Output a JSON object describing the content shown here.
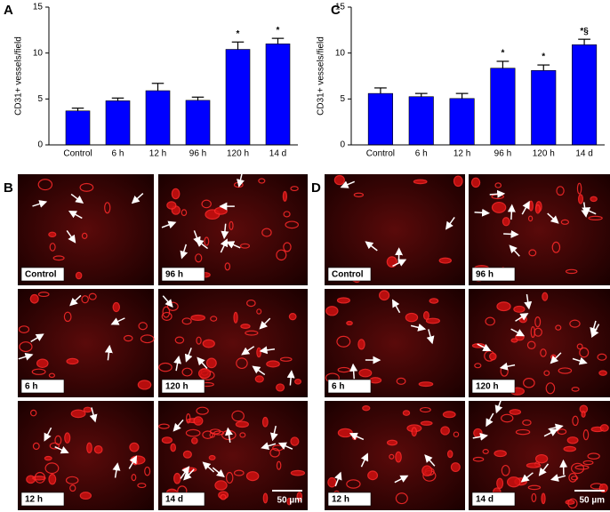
{
  "letters": {
    "a": "A",
    "b": "B",
    "c": "C",
    "d": "D"
  },
  "chart_data": [
    {
      "type": "bar",
      "y_label": "CD31+ vessels/field",
      "categories": [
        "Control",
        "6 h",
        "12 h",
        "96 h",
        "120 h",
        "14 d"
      ],
      "values": [
        3.7,
        4.8,
        5.9,
        4.85,
        10.4,
        11.0
      ],
      "errors": [
        0.3,
        0.3,
        0.8,
        0.35,
        0.8,
        0.6
      ],
      "annotations": [
        null,
        null,
        null,
        null,
        "*",
        "*"
      ],
      "color": "#0000ff",
      "ylim": [
        0,
        15
      ],
      "yticks": [
        0,
        5,
        10,
        15
      ]
    },
    {
      "type": "bar",
      "y_label": "CD31+ vessels/field",
      "categories": [
        "Control",
        "6 h",
        "12 h",
        "96 h",
        "120 h",
        "14 d"
      ],
      "values": [
        5.6,
        5.25,
        5.05,
        8.35,
        8.1,
        10.9
      ],
      "errors": [
        0.6,
        0.35,
        0.55,
        0.75,
        0.6,
        0.6
      ],
      "annotations": [
        null,
        null,
        null,
        "*",
        "*",
        "*§"
      ],
      "color": "#0000ff",
      "ylim": [
        0,
        15
      ],
      "yticks": [
        0,
        5,
        10,
        15
      ]
    }
  ],
  "micrographs": [
    {
      "labels": [
        "Control",
        "6 h",
        "12 h",
        "96 h",
        "120 h",
        "14 d"
      ],
      "scale_bar": "50 µm"
    },
    {
      "labels": [
        "Control",
        "6 h",
        "12 h",
        "96 h",
        "120 h",
        "14 d"
      ],
      "scale_bar": "50 µm"
    }
  ]
}
